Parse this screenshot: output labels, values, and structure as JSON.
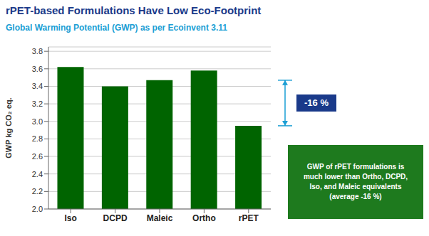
{
  "chart_data": {
    "type": "bar",
    "title": "rPET-based Formulations Have Low Eco-Footprint",
    "title_color": "#1a3a8a",
    "subtitle": "Global Warming Potential (GWP) as per Ecoinvent 3.11",
    "subtitle_color": "#1a9ed4",
    "categories": [
      "Iso",
      "DCPD",
      "Maleic",
      "Ortho",
      "rPET"
    ],
    "values": [
      3.62,
      3.4,
      3.47,
      3.58,
      2.95
    ],
    "color": "#006400",
    "ylabel": "GWP kg CO₂ eq.",
    "ylim": [
      2.0,
      3.85
    ],
    "yticks": [
      {
        "value": 2.0,
        "label": "2.0"
      },
      2.2,
      2.4,
      2.6,
      2.8,
      {
        "value": 3.0,
        "label": "3.0"
      },
      3.2,
      3.4,
      3.6,
      3.8
    ],
    "grid": true,
    "grid_color": "#cccccc",
    "annotations": [
      {
        "type": "bracket",
        "top": 3.47,
        "bottom": 2.95,
        "color": "#1a9ed4",
        "label": "-16 %",
        "label_color": "#1a3a8a",
        "label_text_color": "#ffffff"
      },
      {
        "type": "text_box",
        "text": "GWP of rPET formulations is\nmuch lower than Ortho, DCPD,\nIso, and Maleic equivalents\n(average -16 %)",
        "color": "#1e7a1e",
        "text_color": "#ffffff"
      }
    ]
  }
}
